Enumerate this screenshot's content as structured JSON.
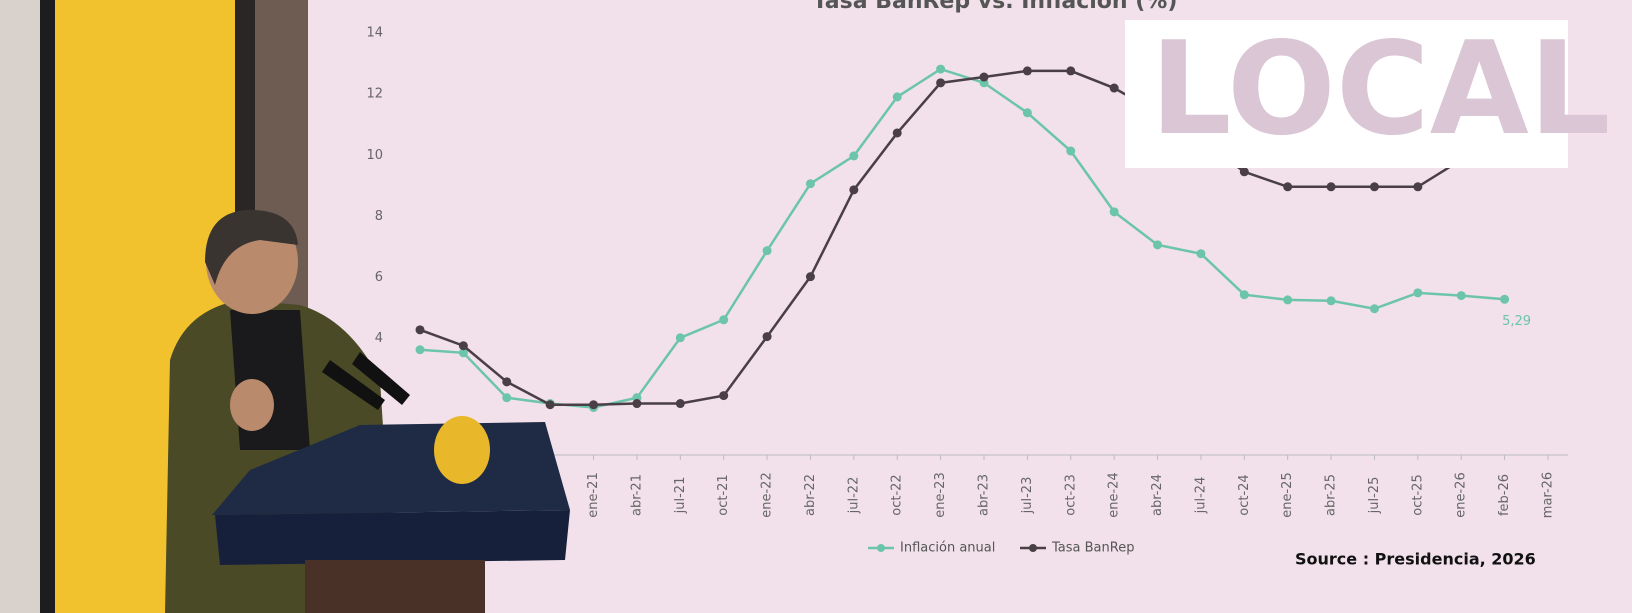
{
  "chart_data": {
    "type": "line",
    "title": "Tasa BanRep vs. Inflación (%)",
    "categories": [
      null,
      null,
      null,
      null,
      "ene-21",
      "abr-21",
      "jul-21",
      "oct-21",
      "ene-22",
      "abr-22",
      "jul-22",
      "oct-22",
      "ene-23",
      "abr-23",
      "jul-23",
      "oct-23",
      "ene-24",
      "abr-24",
      "jul-24",
      "oct-24",
      "ene-25",
      "abr-25",
      "jul-25",
      "oct-25",
      "ene-26",
      "feb-26",
      "mar-26"
    ],
    "series": [
      {
        "name": "Inflación anual",
        "color": "#6cc5a8",
        "values": [
          3.64,
          3.54,
          2.07,
          1.88,
          1.75,
          2.07,
          4.03,
          4.62,
          6.88,
          9.07,
          9.98,
          11.91,
          12.82,
          12.37,
          11.39,
          10.14,
          8.15,
          7.07,
          6.78,
          5.44,
          5.27,
          5.24,
          4.98,
          5.5,
          5.41,
          5.29,
          null
        ],
        "value_labels": [
          null,
          null,
          null,
          null,
          null,
          null,
          null,
          null,
          null,
          null,
          null,
          null,
          null,
          null,
          null,
          null,
          null,
          null,
          null,
          null,
          null,
          null,
          null,
          null,
          null,
          "5,29",
          null
        ]
      },
      {
        "name": "Tasa BanRep",
        "color": "#4a3f45",
        "values": [
          4.29,
          3.77,
          2.59,
          1.84,
          1.84,
          1.88,
          1.88,
          2.14,
          4.07,
          6.03,
          8.87,
          10.73,
          12.37,
          12.56,
          12.76,
          12.76,
          12.2,
          11.39,
          10.5,
          9.46,
          8.97,
          8.97,
          8.97,
          8.97,
          9.85,
          10.5,
          10.7
        ]
      }
    ],
    "ylim": [
      0,
      14
    ],
    "yticks": [
      4,
      6,
      8,
      10,
      12,
      14
    ],
    "grid": false
  },
  "overlay": {
    "badge": "LOCAL",
    "source": "Source : Presidencia, 2026"
  }
}
